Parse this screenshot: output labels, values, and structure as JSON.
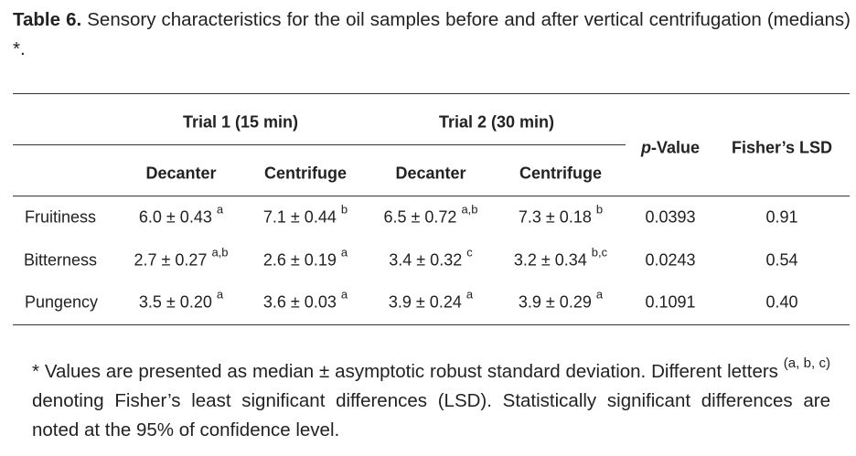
{
  "caption": {
    "label": "Table 6.",
    "text": " Sensory characteristics for the oil samples before and after vertical centrifugation (medians) *."
  },
  "header": {
    "trial1": "Trial 1 (15 min)",
    "trial2": "Trial 2 (30 min)",
    "decanter1": "Decanter",
    "centrifuge1": "Centrifuge",
    "decanter2": "Decanter",
    "centrifuge2": "Centrifuge",
    "p_italic": "p",
    "p_rest": "-Value",
    "lsd": "Fisher’s LSD"
  },
  "rows": [
    {
      "name": "Fruitiness",
      "d1": "6.0 ± 0.43",
      "d1s": "a",
      "c1": "7.1 ± 0.44",
      "c1s": "b",
      "d2": "6.5 ± 0.72",
      "d2s": "a,b",
      "c2": "7.3 ± 0.18",
      "c2s": "b",
      "p": "0.0393",
      "lsd": "0.91"
    },
    {
      "name": "Bitterness",
      "d1": "2.7 ± 0.27",
      "d1s": "a,b",
      "c1": "2.6 ± 0.19",
      "c1s": "a",
      "d2": "3.4 ± 0.32",
      "d2s": "c",
      "c2": "3.2 ± 0.34",
      "c2s": "b,c",
      "p": "0.0243",
      "lsd": "0.54"
    },
    {
      "name": "Pungency",
      "d1": "3.5 ± 0.20",
      "d1s": "a",
      "c1": "3.6 ± 0.03",
      "c1s": "a",
      "d2": "3.9 ± 0.24",
      "d2s": "a",
      "c2": "3.9 ± 0.29",
      "c2s": "a",
      "p": "0.1091",
      "lsd": "0.40"
    }
  ],
  "footnote": {
    "part1": "* Values are presented as median ± asymptotic robust standard deviation. Different letters ",
    "sup": "(a, b, c)",
    "part2": " denoting Fisher’s least significant differences (LSD). Statistically significant differences are noted at the 95% of confidence level."
  }
}
